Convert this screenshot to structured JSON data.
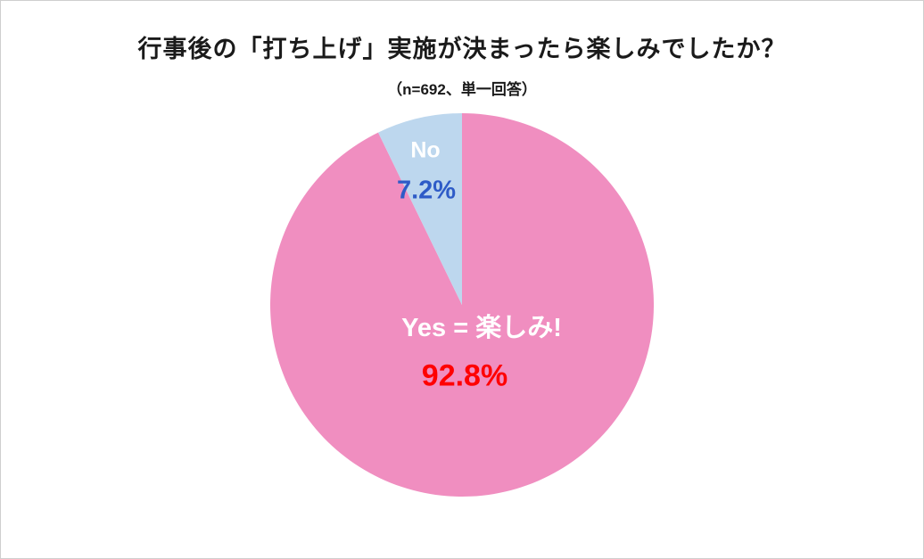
{
  "page": {
    "background": "#ffffff",
    "border_color": "#cfcfcf"
  },
  "chart_data": {
    "type": "pie",
    "title": "行事後の「打ち上げ」実施が決まったら楽しみでしたか？",
    "subtitle": "（n=692、単一回答）",
    "sample_size": 692,
    "start_angle_deg": -90,
    "direction": "clockwise",
    "legend": "none",
    "slices": [
      {
        "name": "yes",
        "label": "Yes = 楽しみ!",
        "value": 92.8,
        "value_label": "92.8%",
        "color": "#F08EC0",
        "label_color": "#ffffff",
        "value_color": "#FF0000"
      },
      {
        "name": "no",
        "label": "No",
        "value": 7.2,
        "value_label": "7.2%",
        "color": "#BDD7EE",
        "label_color": "#ffffff",
        "value_color": "#2E5BC7"
      }
    ]
  }
}
